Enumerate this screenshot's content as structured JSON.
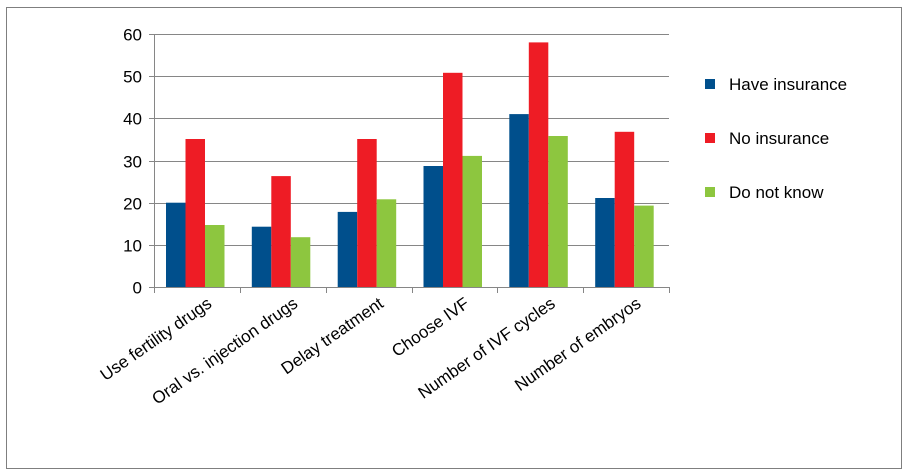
{
  "chart_data": {
    "type": "bar",
    "categories": [
      "Use fertility drugs",
      "Oral vs. injection drugs",
      "Delay treatment",
      "Choose IVF",
      "Number of IVF cycles",
      "Number of embryos"
    ],
    "series": [
      {
        "name": "Have insurance",
        "color": "#004f8c",
        "values": [
          20,
          14.3,
          17.8,
          28.7,
          41,
          21.1
        ]
      },
      {
        "name": "No insurance",
        "color": "#ee1c25",
        "values": [
          35.1,
          26.3,
          35.1,
          50.8,
          58,
          36.8
        ]
      },
      {
        "name": "Do not know",
        "color": "#8dc63f",
        "values": [
          14.7,
          11.8,
          20.8,
          31.1,
          35.8,
          19.3
        ]
      }
    ],
    "yticks": [
      0,
      10,
      20,
      30,
      40,
      50,
      60
    ],
    "ylim": [
      0,
      60
    ],
    "grid": true,
    "legend_position": "right",
    "title": "",
    "xlabel": "",
    "ylabel": ""
  }
}
